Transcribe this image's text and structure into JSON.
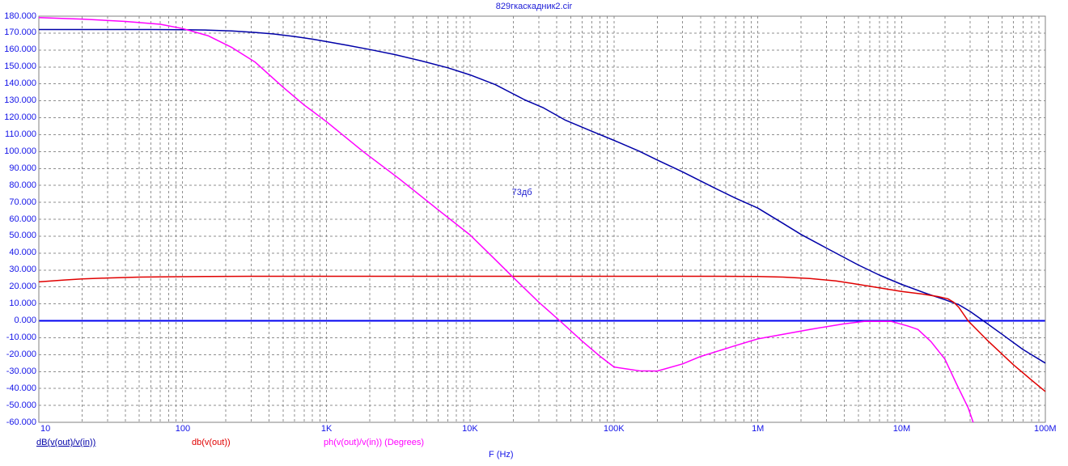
{
  "window": {
    "title": "829гкаскадник2.cir"
  },
  "colors": {
    "background": "#ffffff",
    "frame": "#808080",
    "grid": "#8f8f8f",
    "axis_text": "#1414e8",
    "title_text": "#2020d8",
    "zero_line": "#0000f0",
    "series_gain_ratio": "#0000a8",
    "series_gain_out": "#e00000",
    "series_phase": "#ff00ff",
    "annotation_text": "#1c1cd0"
  },
  "chart_data": {
    "type": "line",
    "title": "829гкаскадник2.cir",
    "xlabel": "F (Hz)",
    "x_scale": "log",
    "x_range_hz": [
      10,
      100000000
    ],
    "x_tick_labels": [
      "10",
      "100",
      "1K",
      "10K",
      "100K",
      "1M",
      "10M",
      "100M"
    ],
    "y_range": [
      -60,
      180
    ],
    "y_tick_step": 10,
    "y_tick_labels": [
      "180.000",
      "170.000",
      "160.000",
      "150.000",
      "140.000",
      "130.000",
      "120.000",
      "110.000",
      "100.000",
      "90.000",
      "80.000",
      "70.000",
      "60.000",
      "50.000",
      "40.000",
      "30.000",
      "20.000",
      "10.000",
      "0.000",
      "-10.000",
      "-20.000",
      "-30.000",
      "-40.000",
      "-50.000",
      "-60.000"
    ],
    "grid_style": "dashed",
    "legend_position": "bottom",
    "zero_line_value": 0,
    "annotations": [
      {
        "text": "73дб",
        "f_hz": 20000,
        "value": 76
      }
    ],
    "series": [
      {
        "name": "dB(v(out)/v(in))",
        "unit": "dB",
        "color": "#0000a8",
        "underlined": true,
        "points": [
          [
            10,
            172.1
          ],
          [
            60,
            172.1
          ],
          [
            100,
            172
          ],
          [
            150,
            171.8
          ],
          [
            220,
            171.3
          ],
          [
            320,
            170.4
          ],
          [
            430,
            169.5
          ],
          [
            600,
            168
          ],
          [
            800,
            166.4
          ],
          [
            1000,
            165
          ],
          [
            1400,
            162.8
          ],
          [
            2000,
            160.3
          ],
          [
            3000,
            157.3
          ],
          [
            4600,
            153.5
          ],
          [
            7000,
            149.5
          ],
          [
            10000,
            145.3
          ],
          [
            15000,
            139.5
          ],
          [
            24000,
            130.5
          ],
          [
            32000,
            126
          ],
          [
            46000,
            118.5
          ],
          [
            70000,
            112
          ],
          [
            100000,
            106.6
          ],
          [
            150000,
            100.2
          ],
          [
            200000,
            95
          ],
          [
            300000,
            88
          ],
          [
            500000,
            78.5
          ],
          [
            700000,
            72.5
          ],
          [
            1000000,
            66.6
          ],
          [
            1500000,
            57.5
          ],
          [
            2000000,
            51
          ],
          [
            3000000,
            43
          ],
          [
            5000000,
            33
          ],
          [
            7000000,
            27
          ],
          [
            10000000,
            21.5
          ],
          [
            15000000,
            16
          ],
          [
            20000000,
            12.5
          ],
          [
            25000000,
            9.5
          ],
          [
            30000000,
            5.5
          ],
          [
            37000000,
            0
          ],
          [
            50000000,
            -8
          ],
          [
            70000000,
            -17
          ],
          [
            100000000,
            -25
          ]
        ]
      },
      {
        "name": "db(v(out))",
        "unit": "dB",
        "color": "#e00000",
        "underlined": false,
        "points": [
          [
            10,
            23
          ],
          [
            15,
            24.1
          ],
          [
            20,
            24.7
          ],
          [
            30,
            25.3
          ],
          [
            50,
            25.8
          ],
          [
            80,
            26
          ],
          [
            150,
            26.2
          ],
          [
            300,
            26.3
          ],
          [
            10000,
            26.3
          ],
          [
            100000,
            26.3
          ],
          [
            500000,
            26.3
          ],
          [
            1000000,
            26.2
          ],
          [
            1500000,
            25.8
          ],
          [
            2300000,
            25
          ],
          [
            3500000,
            23.5
          ],
          [
            4600000,
            22
          ],
          [
            7000000,
            19.5
          ],
          [
            10000000,
            17.3
          ],
          [
            14000000,
            15.8
          ],
          [
            18000000,
            14.3
          ],
          [
            21000000,
            13
          ],
          [
            23000000,
            11
          ],
          [
            25000000,
            8
          ],
          [
            29000000,
            0
          ],
          [
            40000000,
            -12
          ],
          [
            60000000,
            -26
          ],
          [
            80000000,
            -35
          ],
          [
            100000000,
            -41.8
          ]
        ]
      },
      {
        "name": "ph(v(out)/v(in)) (Degrees)",
        "unit": "Degrees",
        "color": "#ff00ff",
        "underlined": false,
        "points": [
          [
            10,
            179.2
          ],
          [
            20,
            178.3
          ],
          [
            40,
            176.9
          ],
          [
            70,
            175.2
          ],
          [
            100,
            172.7
          ],
          [
            150,
            168.5
          ],
          [
            220,
            161.5
          ],
          [
            320,
            152.8
          ],
          [
            500,
            138
          ],
          [
            700,
            127.5
          ],
          [
            1000,
            117.7
          ],
          [
            1800,
            100
          ],
          [
            3200,
            84
          ],
          [
            5800,
            66.5
          ],
          [
            10000,
            50.7
          ],
          [
            15000,
            36
          ],
          [
            20000,
            25.5
          ],
          [
            30000,
            11
          ],
          [
            42000,
            0
          ],
          [
            60000,
            -12
          ],
          [
            80000,
            -21
          ],
          [
            100000,
            -27.3
          ],
          [
            150000,
            -29.6
          ],
          [
            200000,
            -29.7
          ],
          [
            300000,
            -25.5
          ],
          [
            400000,
            -21.1
          ],
          [
            700000,
            -14.7
          ],
          [
            1000000,
            -10.7
          ],
          [
            2300000,
            -5.1
          ],
          [
            3900000,
            -1.9
          ],
          [
            5500000,
            -0.4
          ],
          [
            8500000,
            -0.4
          ],
          [
            11000000,
            -3
          ],
          [
            13000000,
            -5.1
          ],
          [
            16000000,
            -12.3
          ],
          [
            20000000,
            -22.6
          ],
          [
            24000000,
            -37
          ],
          [
            29000000,
            -51.3
          ],
          [
            31500000,
            -60
          ]
        ]
      }
    ]
  },
  "legend": {
    "items": [
      "dB(v(out)/v(in))",
      "db(v(out))",
      "ph(v(out)/v(in)) (Degrees)"
    ]
  },
  "x_axis_title": "F (Hz)"
}
